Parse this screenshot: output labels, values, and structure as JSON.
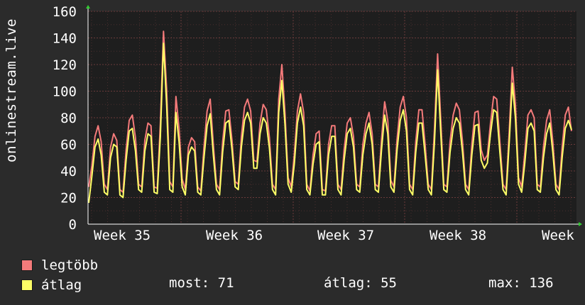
{
  "chart_data": {
    "type": "line",
    "ylabel": "onlinestream.live",
    "ylim": [
      0,
      160
    ],
    "y_ticks": [
      "0",
      "20",
      "40",
      "60",
      "80",
      "100",
      "120",
      "140",
      "160"
    ],
    "x_tick_labels": [
      "Week 35",
      "Week 36",
      "Week 37",
      "Week 38",
      "Week"
    ],
    "grid": true,
    "series": [
      {
        "name": "legtöbb",
        "color": "#f47a7a",
        "values": [
          28,
          44,
          66,
          74,
          62,
          30,
          26,
          58,
          68,
          63,
          26,
          24,
          56,
          78,
          82,
          65,
          30,
          28,
          63,
          76,
          74,
          28,
          27,
          76,
          145,
          102,
          32,
          28,
          96,
          72,
          34,
          26,
          58,
          65,
          62,
          28,
          25,
          58,
          85,
          94,
          60,
          30,
          26,
          62,
          85,
          86,
          63,
          32,
          30,
          66,
          88,
          94,
          85,
          48,
          47,
          76,
          90,
          86,
          65,
          30,
          26,
          94,
          120,
          84,
          35,
          28,
          52,
          85,
          98,
          84,
          30,
          25,
          52,
          68,
          70,
          26,
          25,
          60,
          74,
          74,
          30,
          26,
          56,
          76,
          80,
          66,
          30,
          28,
          60,
          76,
          84,
          68,
          30,
          28,
          64,
          92,
          78,
          33,
          28,
          64,
          88,
          96,
          80,
          30,
          26,
          62,
          86,
          86,
          60,
          30,
          26,
          72,
          128,
          80,
          30,
          28,
          62,
          82,
          91,
          86,
          62,
          30,
          26,
          60,
          84,
          85,
          56,
          48,
          52,
          76,
          96,
          94,
          62,
          30,
          26,
          70,
          118,
          90,
          35,
          28,
          54,
          82,
          86,
          80,
          30,
          28,
          58,
          78,
          86,
          62,
          30,
          26,
          58,
          82,
          88,
          70
        ]
      },
      {
        "name": "átlag",
        "color": "#ffff66",
        "values": [
          16,
          36,
          58,
          64,
          52,
          24,
          22,
          50,
          60,
          58,
          22,
          20,
          48,
          70,
          72,
          55,
          26,
          24,
          55,
          68,
          66,
          24,
          23,
          66,
          136,
          90,
          26,
          24,
          84,
          62,
          28,
          22,
          52,
          58,
          55,
          24,
          22,
          50,
          74,
          83,
          52,
          26,
          22,
          54,
          76,
          78,
          56,
          28,
          26,
          58,
          78,
          84,
          76,
          42,
          42,
          68,
          80,
          76,
          57,
          26,
          22,
          84,
          108,
          75,
          30,
          24,
          45,
          76,
          88,
          74,
          26,
          22,
          45,
          60,
          62,
          22,
          22,
          52,
          66,
          66,
          26,
          22,
          48,
          68,
          72,
          58,
          26,
          24,
          52,
          68,
          76,
          60,
          26,
          24,
          56,
          82,
          68,
          28,
          24,
          56,
          78,
          86,
          70,
          26,
          22,
          54,
          76,
          76,
          52,
          26,
          22,
          62,
          116,
          70,
          26,
          24,
          54,
          72,
          80,
          76,
          54,
          26,
          22,
          52,
          74,
          75,
          48,
          42,
          46,
          68,
          86,
          84,
          54,
          26,
          22,
          62,
          106,
          80,
          30,
          24,
          46,
          72,
          76,
          70,
          26,
          24,
          50,
          68,
          76,
          54,
          26,
          22,
          50,
          72,
          78,
          71
        ]
      }
    ]
  },
  "legend": {
    "max_label": "legtöbb",
    "avg_label": "átlag",
    "max_color": "#f47a7a",
    "avg_color": "#ffff66"
  },
  "stats": {
    "now": "most: 71",
    "avg": "átlag: 55",
    "max": "max: 136"
  }
}
